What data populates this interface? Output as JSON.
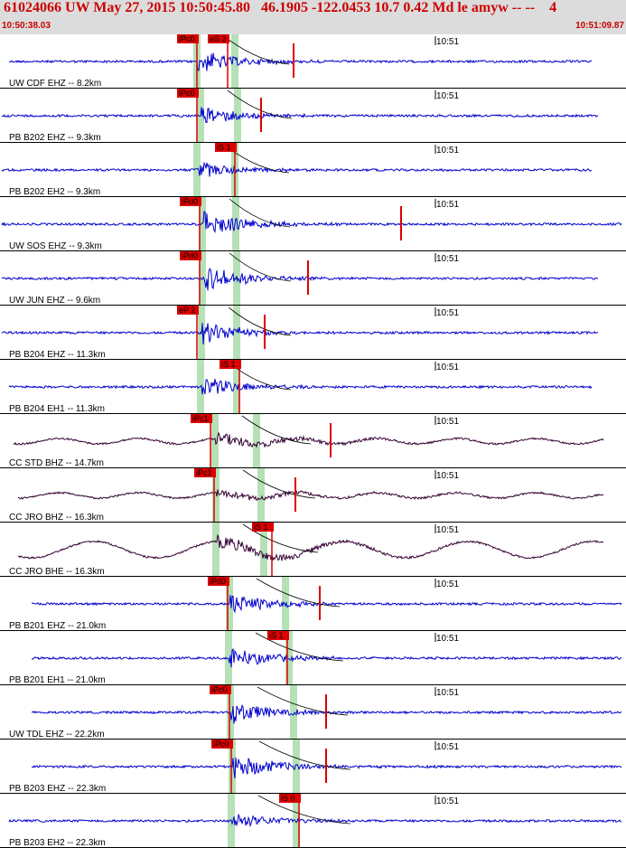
{
  "header": {
    "title": "61024066 UW May 27, 2015 10:50:45.80   46.1905 -122.0453 10.7 0.42 Md le amyw -- --    4",
    "start_time": "10:50:38.03",
    "end_time": "10:51:09.87"
  },
  "colors": {
    "header_bg": "#dcdcdc",
    "header_text": "#cc0000",
    "trace_blue": "#0000cc",
    "trace_purple": "#330033",
    "pick_red": "#dd0000",
    "window_green": "#b6e0b6",
    "separator": "#000000"
  },
  "time_window": {
    "start": "10:50:38.03",
    "end": "10:51:09.87"
  },
  "channels": [
    {
      "label": "UW CDF EHZ -- 8.2km",
      "tick": "10:51",
      "color": "blue",
      "picks": [
        {
          "text": "iPc0"
        },
        {
          "text": "eS 2"
        }
      ]
    },
    {
      "label": "PB B202 EHZ -- 9.3km",
      "tick": "10:51",
      "color": "blue",
      "picks": [
        {
          "text": "iPc0"
        }
      ]
    },
    {
      "label": "PB B202 EH2 -- 9.3km",
      "tick": "10:51",
      "color": "blue",
      "picks": [
        {
          "text": "iS 1"
        }
      ]
    },
    {
      "label": "UW SOS EHZ -- 9.3km",
      "tick": "10:51",
      "color": "blue",
      "picks": [
        {
          "text": "iPd0"
        }
      ]
    },
    {
      "label": "UW JUN EHZ -- 9.6km",
      "tick": "10:51",
      "color": "blue",
      "picks": [
        {
          "text": "iPd0"
        }
      ]
    },
    {
      "label": "PB B204 EHZ -- 11.3km",
      "tick": "10:51",
      "color": "blue",
      "picks": [
        {
          "text": "eP 2"
        }
      ]
    },
    {
      "label": "PB B204 EH1 -- 11.3km",
      "tick": "10:51",
      "color": "blue",
      "picks": [
        {
          "text": "iS 1"
        }
      ]
    },
    {
      "label": "CC STD BHZ -- 14.7km",
      "tick": "10:51",
      "color": "purple",
      "picks": [
        {
          "text": "iPc1"
        }
      ]
    },
    {
      "label": "CC JRO BHZ -- 16.3km",
      "tick": "10:51",
      "color": "purple",
      "picks": [
        {
          "text": "iPc1"
        }
      ]
    },
    {
      "label": "CC JRO BHE -- 16.3km",
      "tick": "10:51",
      "color": "purple",
      "picks": [
        {
          "text": "iS 1"
        }
      ]
    },
    {
      "label": "PB B201 EHZ -- 21.0km",
      "tick": "10:51",
      "color": "blue",
      "picks": [
        {
          "text": "iPd0"
        }
      ]
    },
    {
      "label": "PB B201 EH1 -- 21.0km",
      "tick": "10:51",
      "color": "blue",
      "picks": [
        {
          "text": "iS 1"
        }
      ]
    },
    {
      "label": "UW TDL EHZ -- 22.2km",
      "tick": "10:51",
      "color": "blue",
      "picks": [
        {
          "text": "iPc0"
        }
      ]
    },
    {
      "label": "PB B203 EHZ -- 22.3km",
      "tick": "10:51",
      "color": "blue",
      "picks": [
        {
          "text": "iPc0"
        }
      ]
    },
    {
      "label": "PB B203 EH2 -- 22.3km",
      "tick": "10:51",
      "color": "blue",
      "picks": [
        {
          "text": "iS 0"
        }
      ]
    }
  ]
}
